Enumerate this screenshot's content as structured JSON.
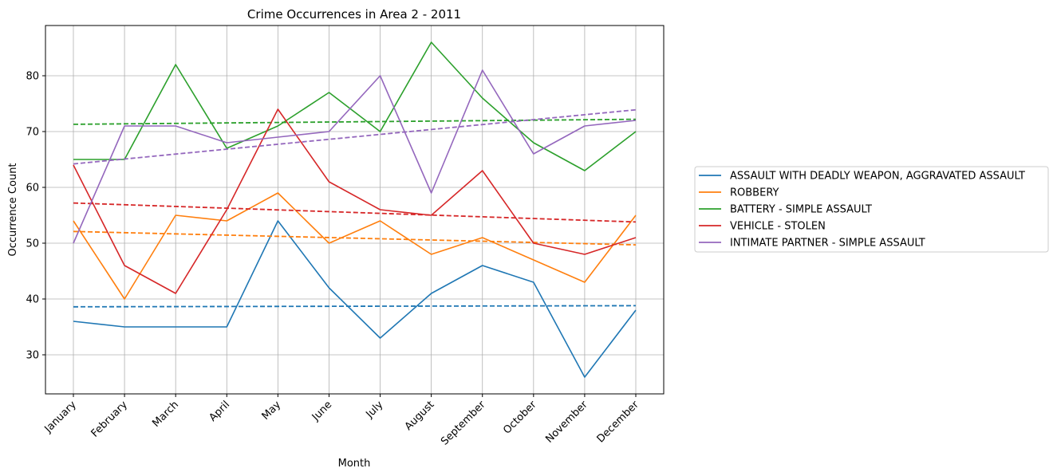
{
  "chart_data": {
    "type": "line",
    "title": "Crime Occurrences in Area 2 - 2011",
    "xlabel": "Month",
    "ylabel": "Occurrence Count",
    "categories": [
      "January",
      "February",
      "March",
      "April",
      "May",
      "June",
      "July",
      "August",
      "September",
      "October",
      "November",
      "December"
    ],
    "ylim": [
      23,
      89
    ],
    "yticks": [
      30,
      40,
      50,
      60,
      70,
      80
    ],
    "grid": true,
    "legend_position": "right",
    "series": [
      {
        "name": "ASSAULT WITH DEADLY WEAPON, AGGRAVATED ASSAULT",
        "color": "#1f77b4",
        "values": [
          36,
          35,
          35,
          35,
          54,
          42,
          33,
          41,
          46,
          43,
          26,
          38
        ],
        "trend": [
          38.6,
          38.8
        ]
      },
      {
        "name": "ROBBERY",
        "color": "#ff7f0e",
        "values": [
          54,
          40,
          55,
          54,
          59,
          50,
          54,
          48,
          51,
          47,
          43,
          55
        ],
        "trend": [
          52.1,
          49.7
        ]
      },
      {
        "name": "BATTERY - SIMPLE ASSAULT",
        "color": "#2ca02c",
        "values": [
          65,
          65,
          82,
          67,
          71,
          77,
          70,
          86,
          76,
          68,
          63,
          70
        ],
        "trend": [
          71.3,
          72.2
        ]
      },
      {
        "name": "VEHICLE - STOLEN",
        "color": "#d62728",
        "values": [
          64,
          46,
          41,
          56,
          74,
          61,
          56,
          55,
          63,
          50,
          48,
          51
        ],
        "trend": [
          57.2,
          53.8
        ]
      },
      {
        "name": "INTIMATE PARTNER - SIMPLE ASSAULT",
        "color": "#9467bd",
        "values": [
          50,
          71,
          71,
          68,
          69,
          70,
          80,
          59,
          81,
          66,
          71,
          72
        ],
        "trend": [
          64.2,
          73.9
        ]
      }
    ]
  }
}
